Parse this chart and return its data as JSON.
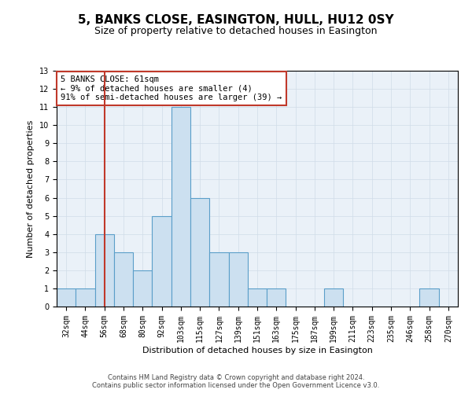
{
  "title": "5, BANKS CLOSE, EASINGTON, HULL, HU12 0SY",
  "subtitle": "Size of property relative to detached houses in Easington",
  "xlabel": "Distribution of detached houses by size in Easington",
  "ylabel": "Number of detached properties",
  "categories": [
    "32sqm",
    "44sqm",
    "56sqm",
    "68sqm",
    "80sqm",
    "92sqm",
    "103sqm",
    "115sqm",
    "127sqm",
    "139sqm",
    "151sqm",
    "163sqm",
    "175sqm",
    "187sqm",
    "199sqm",
    "211sqm",
    "223sqm",
    "235sqm",
    "246sqm",
    "258sqm",
    "270sqm"
  ],
  "values": [
    1,
    1,
    4,
    3,
    2,
    5,
    11,
    6,
    3,
    3,
    1,
    1,
    0,
    0,
    1,
    0,
    0,
    0,
    0,
    1,
    0
  ],
  "bar_color": "#cce0f0",
  "bar_edge_color": "#5a9ec9",
  "highlight_index": 2,
  "highlight_line_color": "#c0392b",
  "annotation_text": "5 BANKS CLOSE: 61sqm\n← 9% of detached houses are smaller (4)\n91% of semi-detached houses are larger (39) →",
  "annotation_box_color": "#c0392b",
  "ylim": [
    0,
    13
  ],
  "yticks": [
    0,
    1,
    2,
    3,
    4,
    5,
    6,
    7,
    8,
    9,
    10,
    11,
    12,
    13
  ],
  "grid_color": "#d0dce8",
  "background_color": "#eaf1f8",
  "footer_line1": "Contains HM Land Registry data © Crown copyright and database right 2024.",
  "footer_line2": "Contains public sector information licensed under the Open Government Licence v3.0.",
  "title_fontsize": 11,
  "subtitle_fontsize": 9,
  "tick_fontsize": 7,
  "ylabel_fontsize": 8,
  "xlabel_fontsize": 8,
  "annotation_fontsize": 7.5,
  "footer_fontsize": 6
}
